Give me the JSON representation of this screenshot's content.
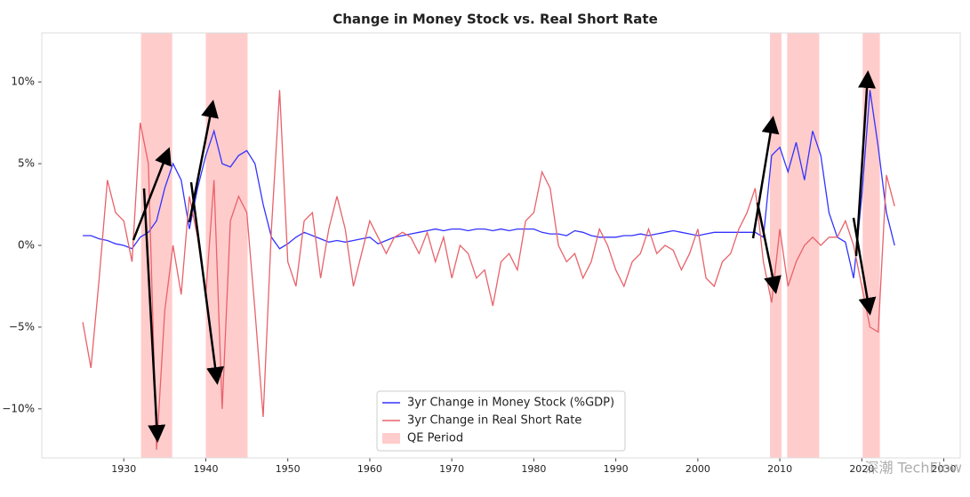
{
  "chart_data": {
    "type": "line",
    "title": "Change in Money Stock vs. Real Short Rate",
    "x": [
      1925,
      1926,
      1927,
      1928,
      1929,
      1930,
      1931,
      1932,
      1933,
      1934,
      1935,
      1936,
      1937,
      1938,
      1939,
      1940,
      1941,
      1942,
      1943,
      1944,
      1945,
      1946,
      1947,
      1948,
      1949,
      1950,
      1951,
      1952,
      1953,
      1954,
      1955,
      1956,
      1957,
      1958,
      1959,
      1960,
      1961,
      1962,
      1963,
      1964,
      1965,
      1966,
      1967,
      1968,
      1969,
      1970,
      1971,
      1972,
      1973,
      1974,
      1975,
      1976,
      1977,
      1978,
      1979,
      1980,
      1981,
      1982,
      1983,
      1984,
      1985,
      1986,
      1987,
      1988,
      1989,
      1990,
      1991,
      1992,
      1993,
      1994,
      1995,
      1996,
      1997,
      1998,
      1999,
      2000,
      2001,
      2002,
      2003,
      2004,
      2005,
      2006,
      2007,
      2008,
      2009,
      2010,
      2011,
      2012,
      2013,
      2014,
      2015,
      2016,
      2017,
      2018,
      2019,
      2020,
      2021,
      2022,
      2023,
      2024
    ],
    "series": [
      {
        "name": "3yr Change in Money Stock (%GDP)",
        "color": "#3333ff",
        "values": [
          0.6,
          0.6,
          0.4,
          0.3,
          0.1,
          0.0,
          -0.2,
          0.5,
          0.8,
          1.5,
          3.5,
          5.0,
          4.0,
          1.0,
          3.5,
          5.5,
          7.0,
          5.0,
          4.8,
          5.5,
          5.8,
          5.0,
          2.5,
          0.5,
          -0.2,
          0.1,
          0.5,
          0.8,
          0.6,
          0.4,
          0.2,
          0.3,
          0.2,
          0.3,
          0.4,
          0.5,
          0.1,
          0.3,
          0.5,
          0.6,
          0.7,
          0.8,
          0.9,
          1.0,
          0.9,
          1.0,
          1.0,
          0.9,
          1.0,
          1.0,
          0.9,
          1.0,
          0.9,
          1.0,
          1.0,
          1.0,
          0.8,
          0.7,
          0.7,
          0.6,
          0.9,
          0.8,
          0.6,
          0.5,
          0.5,
          0.5,
          0.6,
          0.6,
          0.7,
          0.6,
          0.7,
          0.8,
          0.9,
          0.8,
          0.7,
          0.6,
          0.7,
          0.8,
          0.8,
          0.8,
          0.8,
          0.8,
          0.8,
          0.5,
          5.5,
          6.0,
          4.5,
          6.3,
          4.0,
          7.0,
          5.5,
          2.0,
          0.5,
          0.2,
          -2.0,
          3.0,
          9.5,
          6.0,
          2.0,
          0.0
        ]
      },
      {
        "name": "3yr Change in Real Short Rate",
        "color": "#e8626a",
        "values": [
          -4.7,
          -7.5,
          -2,
          4,
          2,
          1.5,
          -1,
          7.5,
          5,
          -12.5,
          -4,
          0,
          -3,
          3,
          0.5,
          -3,
          4,
          -10,
          1.5,
          3,
          2,
          -4,
          -10.5,
          1,
          9.5,
          -1,
          -2.5,
          1.5,
          2,
          -2,
          1,
          3,
          1,
          -2.5,
          -0.5,
          1.5,
          0.5,
          -0.5,
          0.5,
          0.8,
          0.5,
          -0.5,
          0.8,
          -1,
          0.5,
          -2,
          0,
          -0.5,
          -2,
          -1.5,
          -3.7,
          -1,
          -0.5,
          -1.5,
          1.5,
          2,
          4.5,
          3.5,
          0,
          -1,
          -0.5,
          -2,
          -1,
          1,
          0,
          -1.5,
          -2.5,
          -1,
          -0.5,
          1,
          -0.5,
          0,
          -0.3,
          -1.5,
          -0.5,
          1,
          -2,
          -2.5,
          -1,
          -0.5,
          1,
          2,
          3.5,
          -1,
          -3.5,
          1,
          -2.5,
          -1,
          0,
          0.5,
          0,
          0.5,
          0.5,
          1.5,
          0,
          -2.5,
          -5,
          -5.3,
          4.3,
          2.4
        ]
      }
    ],
    "shaded": {
      "name": "QE Period",
      "color": "#ffcccc",
      "ranges": [
        [
          1932.1,
          1935.9
        ],
        [
          1940.0,
          1945.1
        ],
        [
          2008.8,
          2010.2
        ],
        [
          2010.9,
          2014.8
        ],
        [
          2020.1,
          2022.2
        ]
      ]
    },
    "xlim": [
      1920,
      2032
    ],
    "xticks": [
      1930,
      1940,
      1950,
      1960,
      1970,
      1980,
      1990,
      2000,
      2010,
      2020,
      2030
    ],
    "ylim": [
      -13,
      13
    ],
    "yticks": [
      {
        "value": -10,
        "label": "−10%"
      },
      {
        "value": -5,
        "label": "−5%"
      },
      {
        "value": 0,
        "label": "0%"
      },
      {
        "value": 5,
        "label": "5%"
      },
      {
        "value": 10,
        "label": "10%"
      }
    ],
    "legend": "lower center",
    "watermark": "深潮 TechFlow"
  }
}
